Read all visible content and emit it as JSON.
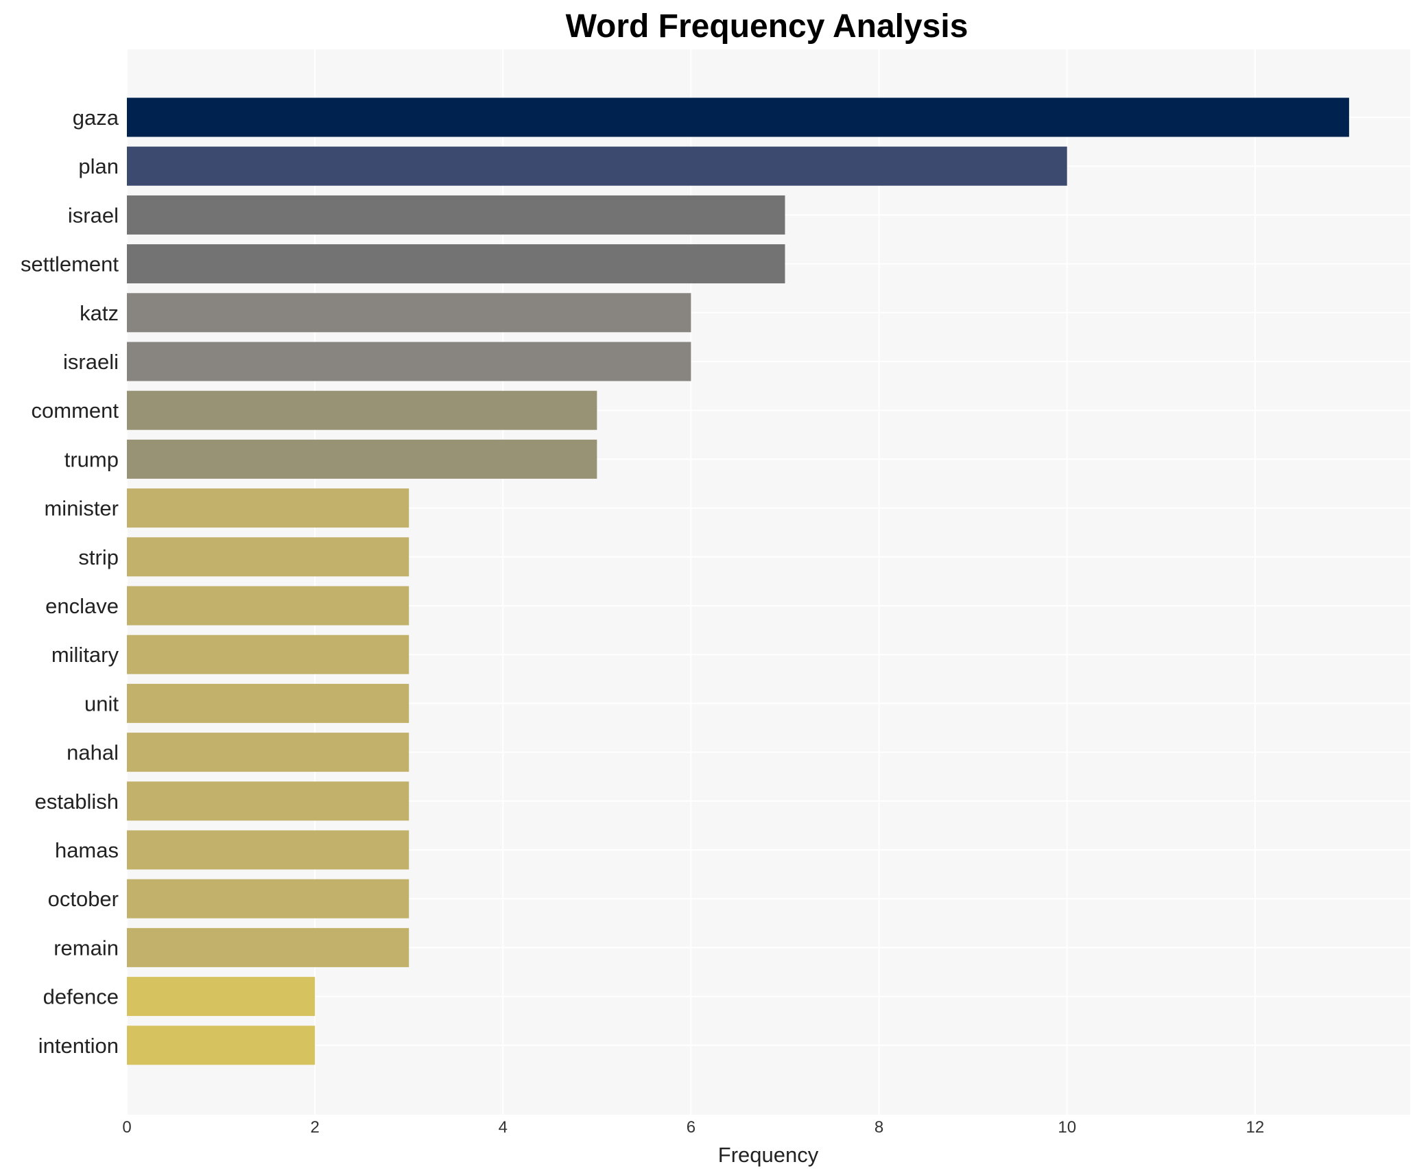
{
  "chart_data": {
    "type": "bar",
    "orientation": "horizontal",
    "title": "Word Frequency Analysis",
    "xlabel": "Frequency",
    "ylabel": "",
    "categories": [
      "gaza",
      "plan",
      "israel",
      "settlement",
      "katz",
      "israeli",
      "comment",
      "trump",
      "minister",
      "strip",
      "enclave",
      "military",
      "unit",
      "nahal",
      "establish",
      "hamas",
      "october",
      "remain",
      "defence",
      "intention"
    ],
    "values": [
      13,
      10,
      7,
      7,
      6,
      6,
      5,
      5,
      3,
      3,
      3,
      3,
      3,
      3,
      3,
      3,
      3,
      3,
      2,
      2
    ],
    "bar_colors": [
      "#00224e",
      "#3d4a6f",
      "#737373",
      "#737373",
      "#888580",
      "#888580",
      "#999376",
      "#999376",
      "#c2b16a",
      "#c2b16a",
      "#c2b16a",
      "#c2b16a",
      "#c2b16a",
      "#c2b16a",
      "#c2b16a",
      "#c2b16a",
      "#c2b16a",
      "#c2b16a",
      "#d6c35f",
      "#d6c35f"
    ],
    "xlim": [
      0,
      13.65
    ],
    "xticks": [
      0,
      2,
      4,
      6,
      8,
      10,
      12
    ],
    "grid": true,
    "background": "#f7f7f7"
  }
}
